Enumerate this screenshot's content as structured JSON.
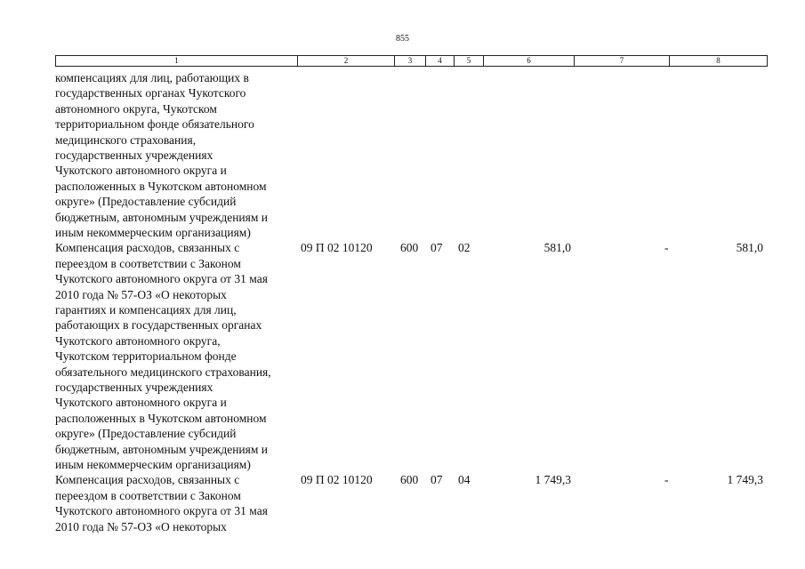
{
  "header": {
    "page_number": "855"
  },
  "table": {
    "headers": [
      "1",
      "2",
      "3",
      "4",
      "5",
      "6",
      "7",
      "8"
    ],
    "rows": [
      {
        "description": [
          "компенсациях для лиц, работающих в",
          "государственных органах Чукотского",
          "автономного округа, Чукотском",
          "территориальном фонде обязательного",
          "медицинского страхования,",
          "государственных учреждениях",
          "Чукотского автономного округа и",
          "расположенных в Чукотском автономном",
          "округе» (Предоставление субсидий",
          "бюджетным, автономным учреждениям и",
          "иным некоммерческим организациям)"
        ]
      },
      {
        "description": [
          "Компенсация расходов, связанных с",
          "переездом в соответствии с Законом",
          "Чукотского автономного округа от 31 мая",
          "2010 года № 57-ОЗ «О некоторых",
          "гарантиях и компенсациях для лиц,",
          "работающих в государственных органах",
          "Чукотского автономного округа,",
          "Чукотском территориальном фонде",
          "обязательного медицинского страхования,",
          "государственных учреждениях",
          "Чукотского автономного округа и",
          "расположенных в Чукотском автономном",
          "округе» (Предоставление субсидий",
          "бюджетным, автономным учреждениям и",
          "иным некоммерческим организациям)"
        ],
        "code": "09 П 02 10120",
        "c3": "600",
        "c4": "07",
        "c5": "02",
        "c6": "581,0",
        "c7": "-",
        "c8": "581,0"
      },
      {
        "description": [
          "Компенсация расходов, связанных с",
          "переездом в соответствии с Законом",
          "Чукотского автономного округа от 31 мая",
          "2010 года № 57-ОЗ «О некоторых"
        ],
        "code": "09 П 02 10120",
        "c3": "600",
        "c4": "07",
        "c5": "04",
        "c6": "1 749,3",
        "c7": "-",
        "c8": "1 749,3"
      }
    ]
  }
}
